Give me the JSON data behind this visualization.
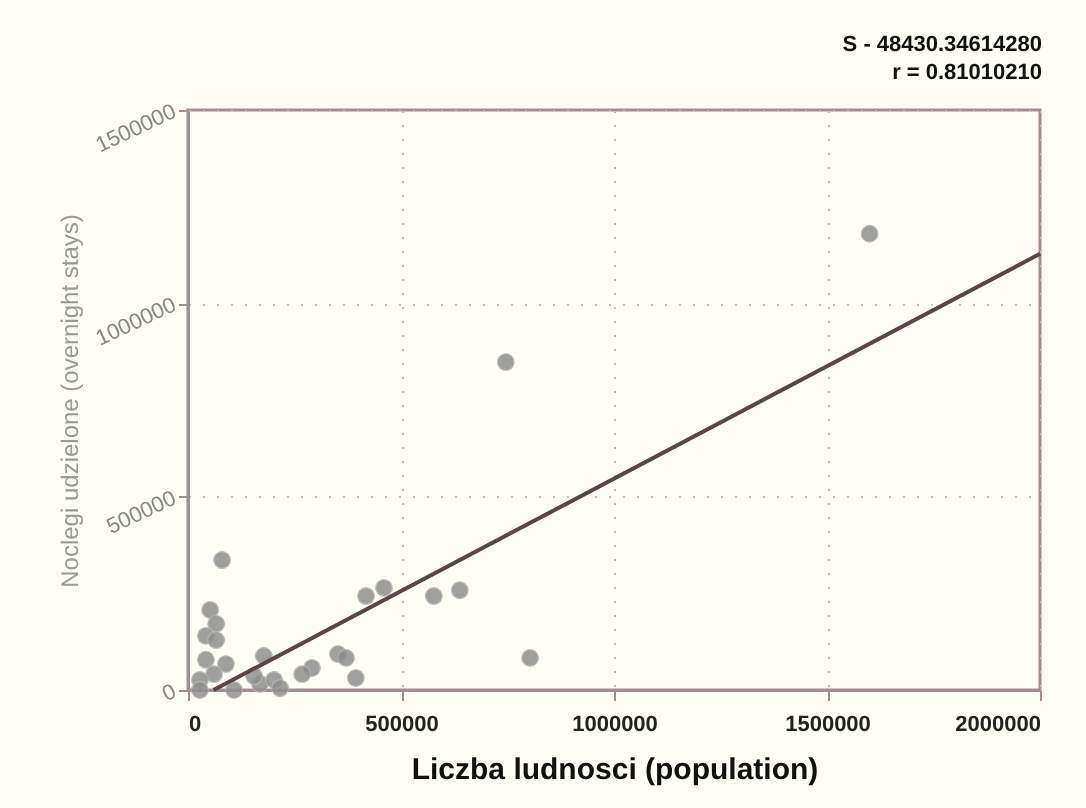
{
  "chart_data": {
    "type": "scatter",
    "xlabel": "Liczba ludnosci (population)",
    "ylabel": "Noclegi udzielone (overnight stays)",
    "annotations": [
      "S - 48430.34614280",
      "r = 0.81010210"
    ],
    "xlim": [
      0,
      2000000
    ],
    "xticks": [
      0,
      500000,
      1000000,
      1500000,
      2000000
    ],
    "ylim": [
      0,
      1500000
    ],
    "yticks": [
      0,
      500000,
      1000000,
      1500000
    ],
    "grid": true,
    "series": [
      {
        "color": "#8f8f8f",
        "marker": "circle",
        "x": [
          1600000,
          746000,
          803000,
          577000,
          638000,
          418000,
          460000,
          352000,
          371000,
          394000,
          291000,
          268000,
          178000,
          80000,
          52000,
          66000,
          42000,
          66000,
          42000,
          89000,
          61000,
          28000,
          169000,
          202000,
          155000,
          28000,
          108000,
          216000
        ],
        "values": [
          1180000,
          848000,
          83000,
          243000,
          258000,
          243000,
          264000,
          93000,
          83000,
          31000,
          57000,
          41000,
          88000,
          336000,
          207000,
          171000,
          140000,
          129000,
          78000,
          67000,
          41000,
          26000,
          16000,
          26000,
          36000,
          0,
          0,
          5000
        ]
      },
      {
        "type": "line",
        "color": "#5a4448",
        "x": [
          60000,
          2000000
        ],
        "values": [
          0,
          1128000
        ]
      }
    ]
  }
}
